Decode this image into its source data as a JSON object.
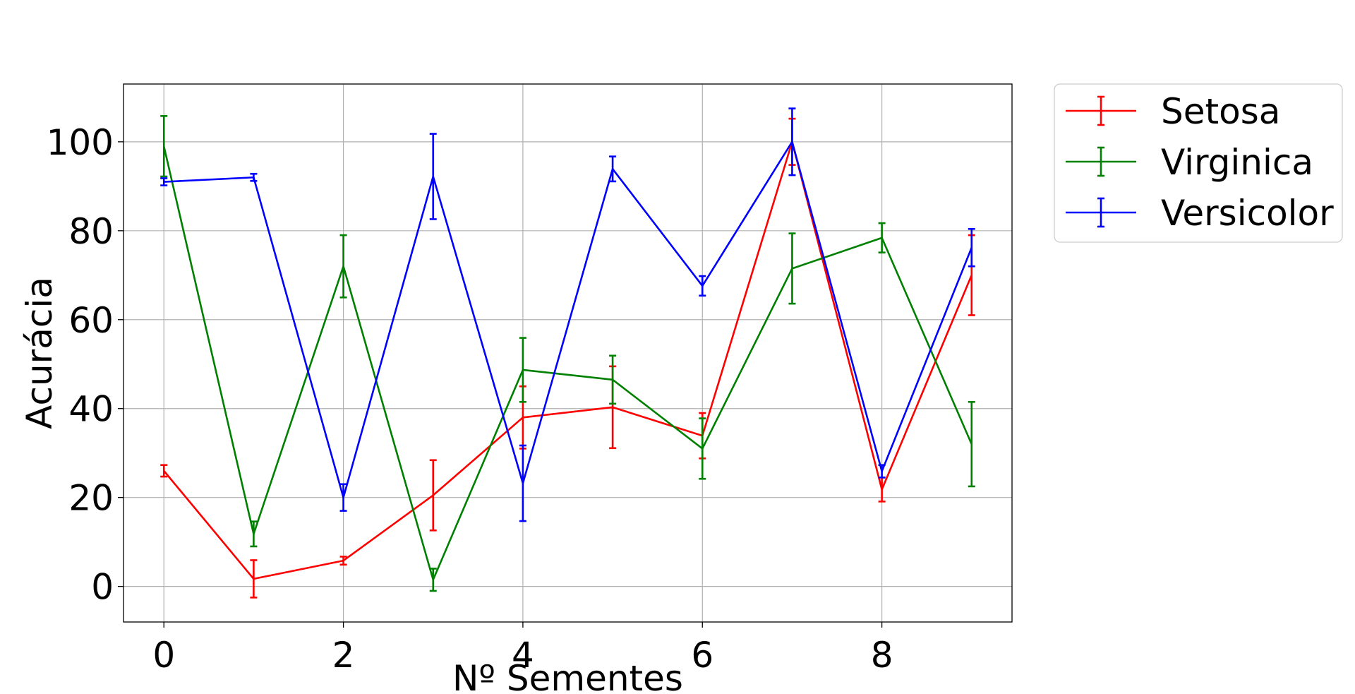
{
  "chart_data": {
    "type": "line",
    "xlabel": "Nº Sementes",
    "ylabel": "Acurácia",
    "xlim": [
      -0.45,
      9.45
    ],
    "ylim": [
      -8,
      113
    ],
    "xticks": [
      0,
      2,
      4,
      6,
      8
    ],
    "yticks": [
      0,
      20,
      40,
      60,
      80,
      100
    ],
    "x_tick_labels": [
      "0",
      "2",
      "4",
      "6",
      "8"
    ],
    "y_tick_labels": [
      "0",
      "20",
      "40",
      "60",
      "80",
      "100"
    ],
    "grid": true,
    "legend_position": "outside-top-right",
    "x": [
      0,
      1,
      2,
      3,
      4,
      5,
      6,
      7,
      8,
      9
    ],
    "series": [
      {
        "name": "Setosa",
        "color": "#ff0000",
        "values": [
          26,
          1.7,
          5.8,
          20.5,
          38,
          40.3,
          33.9,
          100,
          21.8,
          70
        ],
        "errors": [
          1.3,
          4.2,
          0.9,
          7.9,
          7,
          9.2,
          5.1,
          5.2,
          2.7,
          9
        ]
      },
      {
        "name": "Virginica",
        "color": "#008000",
        "values": [
          99,
          11.8,
          72,
          1.5,
          48.7,
          46.5,
          31,
          71.5,
          78.4,
          32
        ],
        "errors": [
          6.8,
          2.8,
          7,
          2.5,
          7.2,
          5.4,
          6.8,
          7.9,
          3.3,
          9.5
        ]
      },
      {
        "name": "Versicolor",
        "color": "#0000ff",
        "values": [
          91,
          92,
          20,
          92.2,
          23.2,
          93.9,
          67.6,
          100,
          25.9,
          76.2
        ],
        "errors": [
          0.8,
          0.8,
          3,
          9.6,
          8.5,
          2.8,
          2.2,
          7.5,
          1.4,
          4.2
        ]
      }
    ]
  }
}
